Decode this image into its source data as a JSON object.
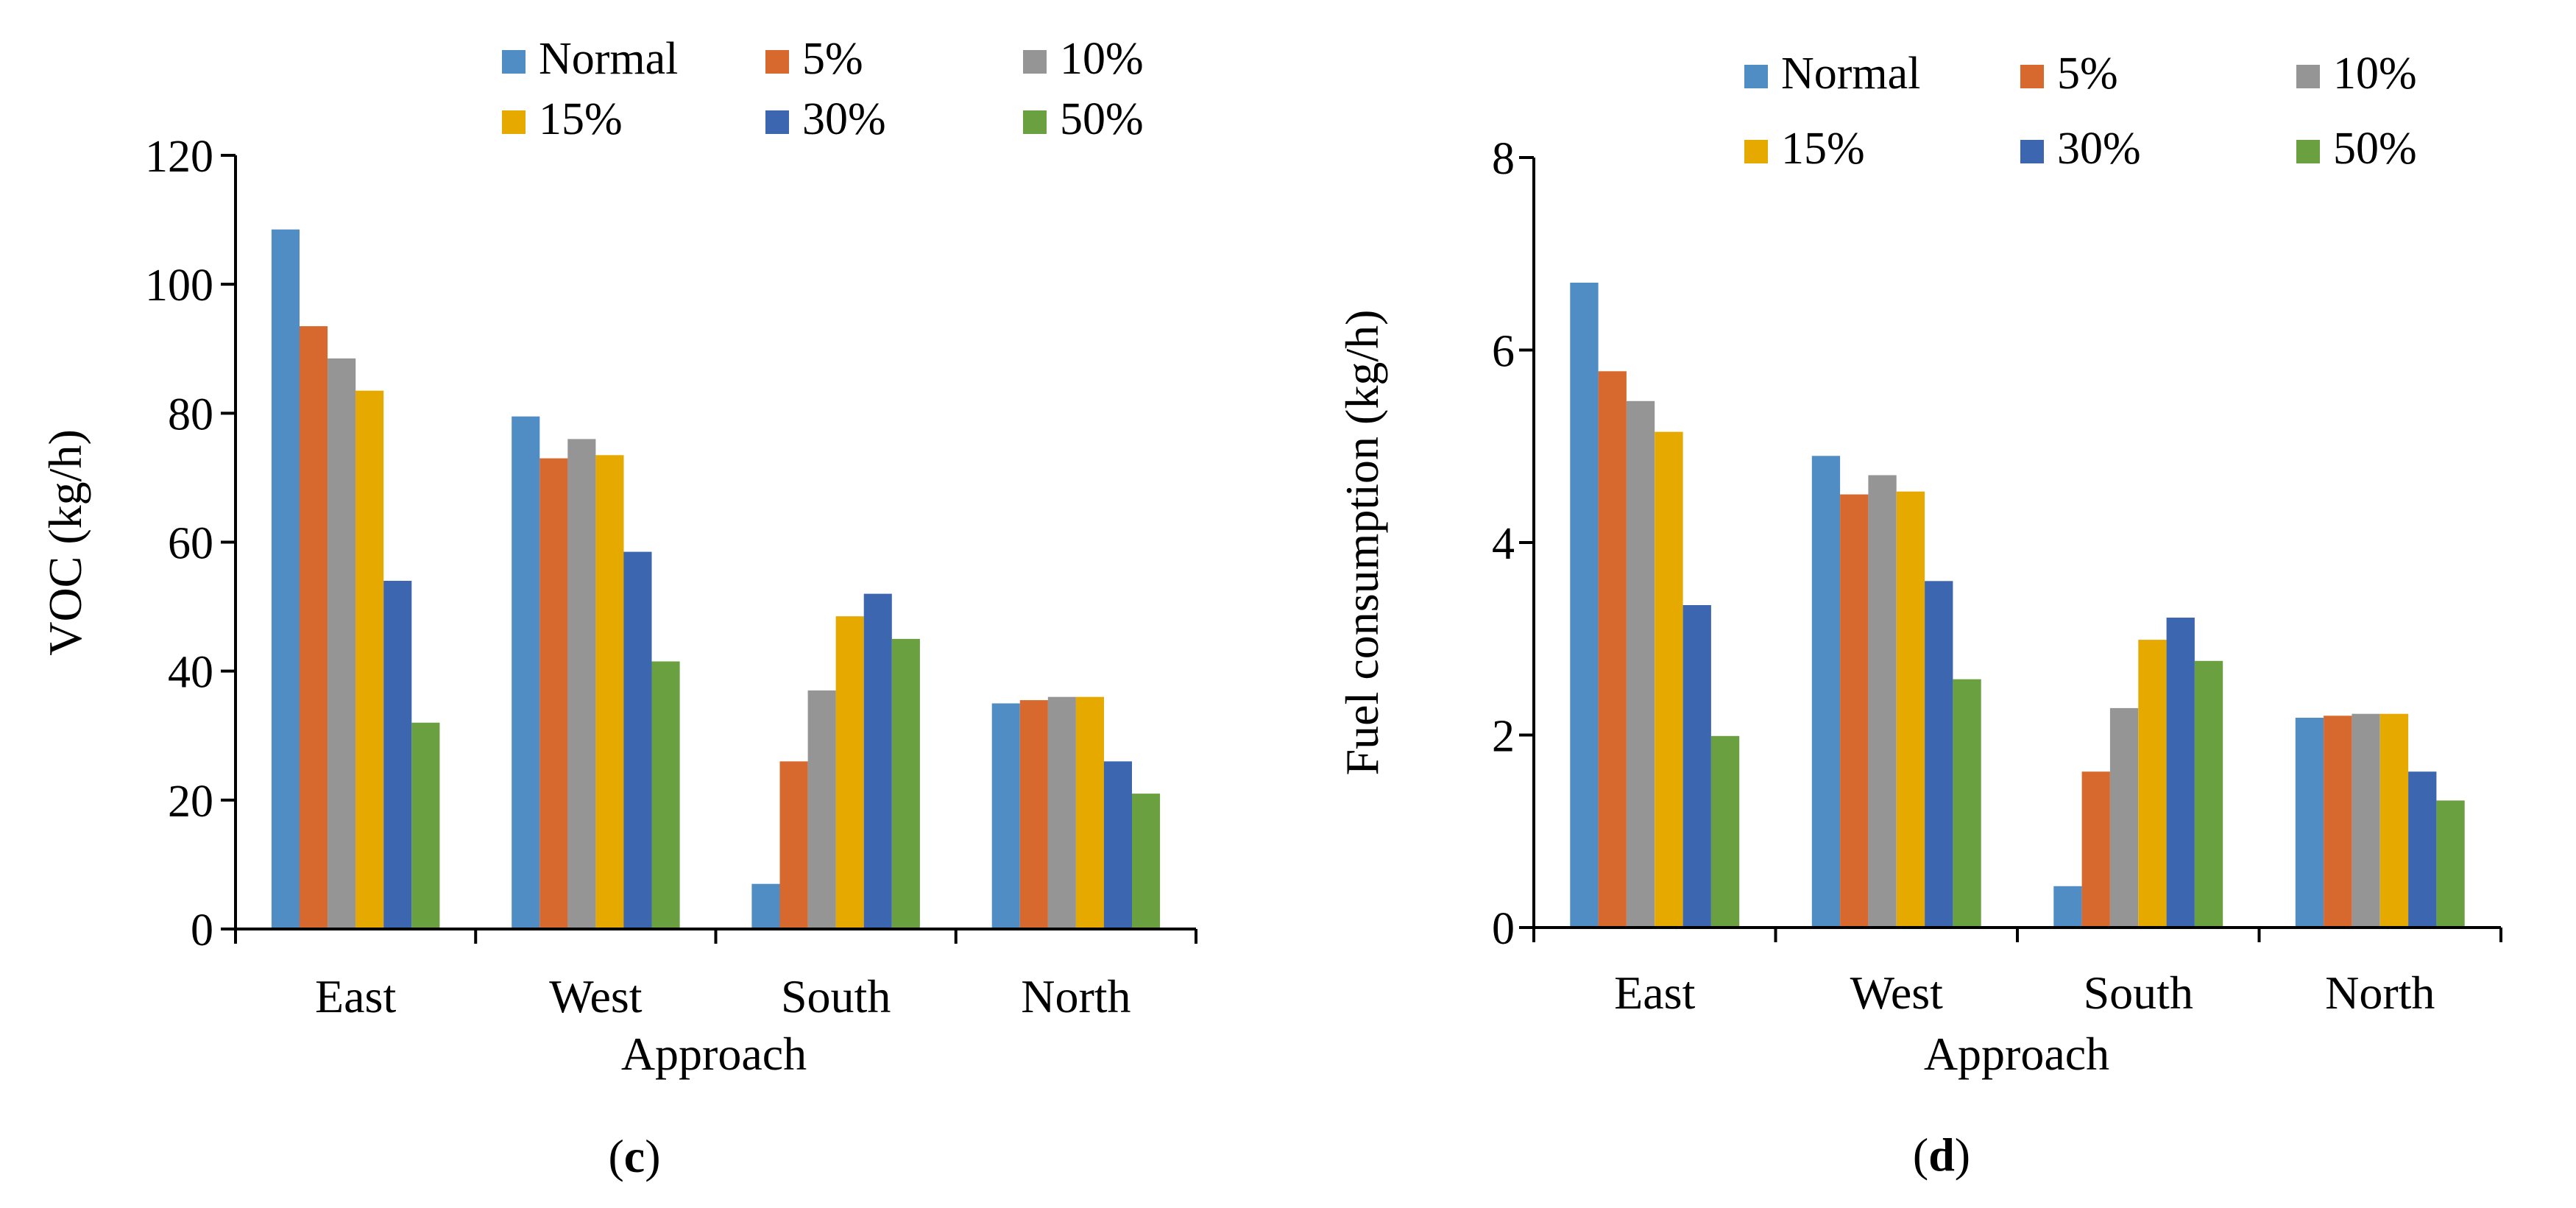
{
  "chart_data": [
    {
      "type": "bar",
      "panel_label": "c",
      "title": "",
      "xlabel": "Approach",
      "ylabel": "VOC (kg/h)",
      "categories": [
        "East",
        "West",
        "South",
        "North"
      ],
      "ylim": [
        0,
        120
      ],
      "yticks": [
        0,
        20,
        40,
        60,
        80,
        100,
        120
      ],
      "grid": false,
      "legend_position": "top",
      "series": [
        {
          "name": "Normal",
          "color": "#4f8dc4",
          "values": [
            108.5,
            79.5,
            7,
            35
          ]
        },
        {
          "name": "5%",
          "color": "#d8692e",
          "values": [
            93.5,
            73,
            26,
            35.5
          ]
        },
        {
          "name": "10%",
          "color": "#959595",
          "values": [
            88.5,
            76,
            37,
            36
          ]
        },
        {
          "name": "15%",
          "color": "#e6a900",
          "values": [
            83.5,
            73.5,
            48.5,
            36
          ]
        },
        {
          "name": "30%",
          "color": "#3d66b0",
          "values": [
            54,
            58.5,
            52,
            26
          ]
        },
        {
          "name": "50%",
          "color": "#6aa040",
          "values": [
            32,
            41.5,
            45,
            21
          ]
        }
      ]
    },
    {
      "type": "bar",
      "panel_label": "d",
      "title": "",
      "xlabel": "Approach",
      "ylabel": "Fuel consumption (kg/h)",
      "categories": [
        "East",
        "West",
        "South",
        "North"
      ],
      "ylim": [
        0,
        8
      ],
      "yticks": [
        0,
        2,
        4,
        6,
        8
      ],
      "grid": false,
      "legend_position": "top",
      "series": [
        {
          "name": "Normal",
          "color": "#4f8dc4",
          "values": [
            6.7,
            4.9,
            0.43,
            2.18
          ]
        },
        {
          "name": "5%",
          "color": "#d8692e",
          "values": [
            5.78,
            4.5,
            1.62,
            2.2
          ]
        },
        {
          "name": "10%",
          "color": "#959595",
          "values": [
            5.47,
            4.7,
            2.28,
            2.22
          ]
        },
        {
          "name": "15%",
          "color": "#e6a900",
          "values": [
            5.15,
            4.53,
            2.99,
            2.22
          ]
        },
        {
          "name": "30%",
          "color": "#3d66b0",
          "values": [
            3.35,
            3.6,
            3.22,
            1.62
          ]
        },
        {
          "name": "50%",
          "color": "#6aa040",
          "values": [
            1.99,
            2.58,
            2.77,
            1.32
          ]
        }
      ]
    }
  ]
}
